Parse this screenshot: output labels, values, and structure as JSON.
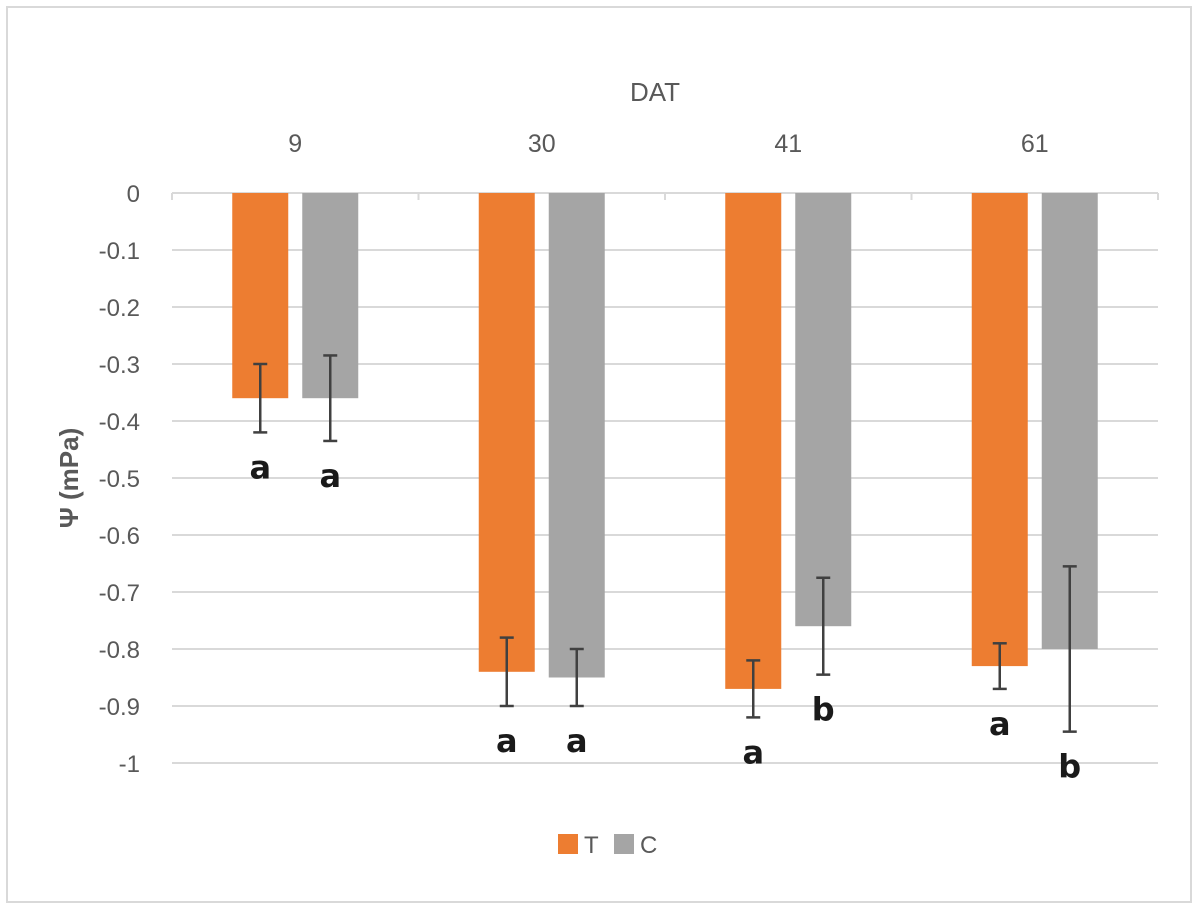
{
  "chart_data": {
    "type": "bar",
    "title": "",
    "xlabel": "DAT",
    "ylabel": "Ψ (mPa)",
    "categories": [
      "9",
      "30",
      "41",
      "61"
    ],
    "ylim": [
      -1,
      0
    ],
    "yticks": [
      "0",
      "-0.1",
      "-0.2",
      "-0.3",
      "-0.4",
      "-0.5",
      "-0.6",
      "-0.7",
      "-0.8",
      "-0.9",
      "-1"
    ],
    "x_axis_position": "top",
    "grid": true,
    "legend_position": "bottom-center",
    "series": [
      {
        "name": "T",
        "color": "#ed7d31",
        "values": [
          -0.36,
          -0.84,
          -0.87,
          -0.83
        ],
        "error": [
          0.06,
          0.06,
          0.05,
          0.04
        ],
        "letters": [
          "a",
          "a",
          "a",
          "a"
        ]
      },
      {
        "name": "C",
        "color": "#a5a5a5",
        "values": [
          -0.36,
          -0.85,
          -0.76,
          -0.8
        ],
        "error": [
          0.075,
          0.05,
          0.085,
          0.145
        ],
        "letters": [
          "a",
          "a",
          "b",
          "b"
        ]
      }
    ]
  }
}
